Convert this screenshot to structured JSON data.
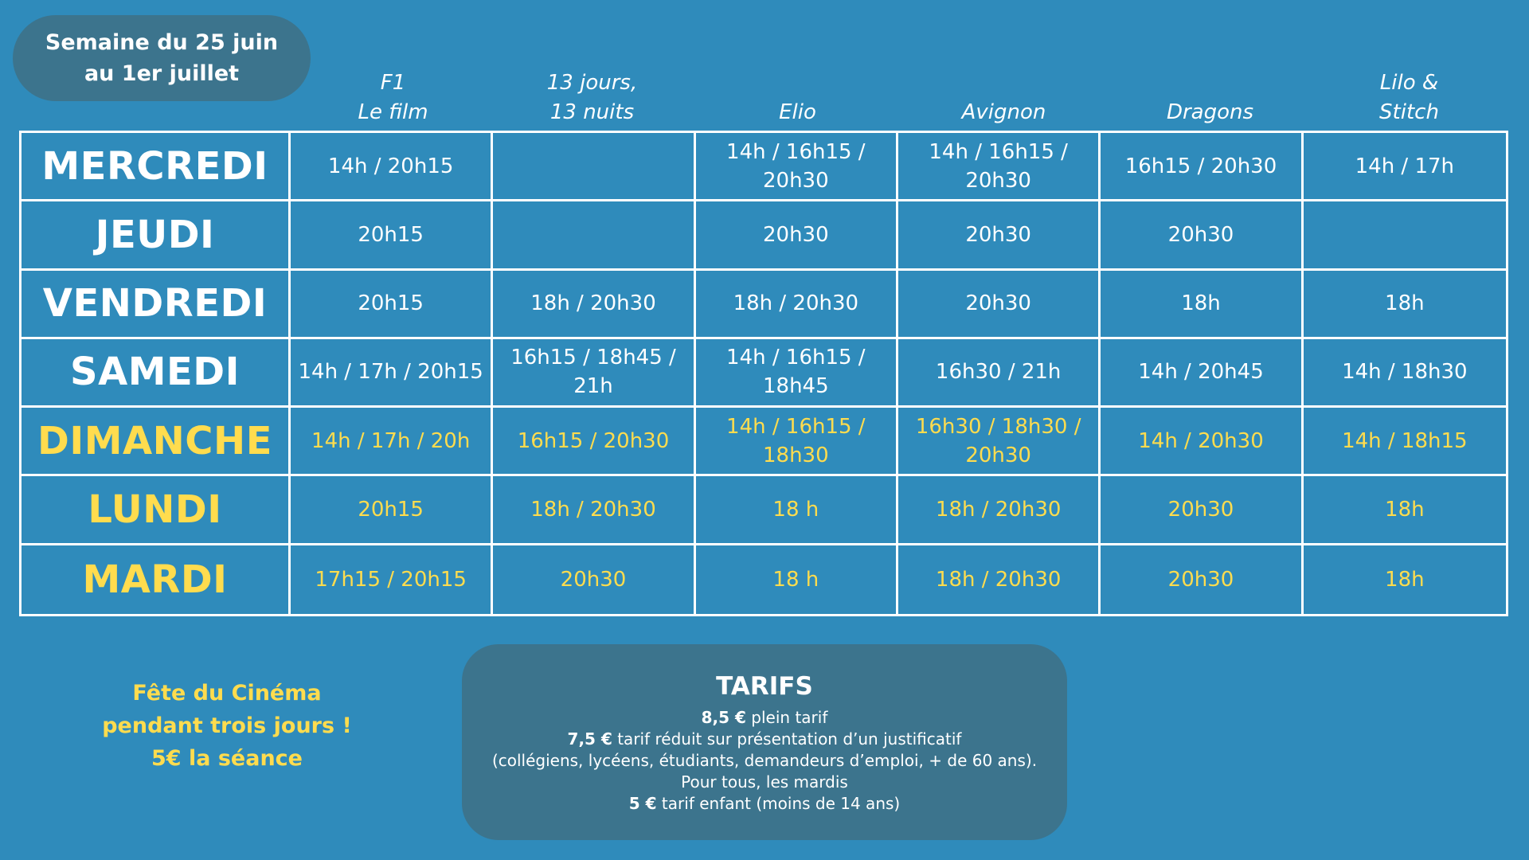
{
  "week": {
    "line1": "Semaine du 25 juin",
    "line2": "au 1er juillet"
  },
  "films": [
    {
      "line1": "F1",
      "line2": "Le film"
    },
    {
      "line1": "13 jours,",
      "line2": "13 nuits"
    },
    {
      "line1": "",
      "line2": "Elio"
    },
    {
      "line1": "",
      "line2": "Avignon"
    },
    {
      "line1": "",
      "line2": "Dragons"
    },
    {
      "line1": "Lilo &",
      "line2": "Stitch"
    }
  ],
  "days": [
    {
      "name": "MERCREDI",
      "highlight": false,
      "times": [
        "14h / 20h15",
        "",
        "14h / 16h15 / 20h30",
        "14h / 16h15 / 20h30",
        "16h15 / 20h30",
        "14h / 17h"
      ]
    },
    {
      "name": "JEUDI",
      "highlight": false,
      "times": [
        "20h15",
        "",
        "20h30",
        "20h30",
        "20h30",
        ""
      ]
    },
    {
      "name": "VENDREDI",
      "highlight": false,
      "times": [
        "20h15",
        "18h / 20h30",
        "18h / 20h30",
        "20h30",
        "18h",
        "18h"
      ]
    },
    {
      "name": "SAMEDI",
      "highlight": false,
      "times": [
        "14h / 17h / 20h15",
        "16h15 / 18h45 / 21h",
        "14h / 16h15 / 18h45",
        "16h30 / 21h",
        "14h / 20h45",
        "14h / 18h30"
      ]
    },
    {
      "name": "DIMANCHE",
      "highlight": true,
      "times": [
        "14h / 17h / 20h",
        "16h15 / 20h30",
        "14h / 16h15 / 18h30",
        "16h30 / 18h30 / 20h30",
        "14h / 20h30",
        "14h / 18h15"
      ]
    },
    {
      "name": "LUNDI",
      "highlight": true,
      "times": [
        "20h15",
        "18h / 20h30",
        "18 h",
        "18h / 20h30",
        "20h30",
        "18h"
      ]
    },
    {
      "name": "MARDI",
      "highlight": true,
      "times": [
        "17h15 / 20h15",
        "20h30",
        "18 h",
        "18h / 20h30",
        "20h30",
        "18h"
      ]
    }
  ],
  "fete": {
    "line1": "Fête du Cinéma",
    "line2": "pendant trois jours !",
    "line3": "5€ la séance"
  },
  "tarifs": {
    "title": "TARIFS",
    "plein_price": "8,5 €",
    "plein_text": " plein tarif",
    "reduit_price": "7,5 €",
    "reduit_text": " tarif réduit sur présentation d’un justificatif",
    "reduit_detail": "(collégiens, lycéens, étudiants, demandeurs d’emploi, + de 60 ans). Pour tous, les mardis",
    "enfant_price": "5 €",
    "enfant_text": " tarif enfant (moins de 14 ans)"
  },
  "colors": {
    "background": "#2f8bbb",
    "panel": "#3c748d",
    "highlight": "#ffdc4e",
    "text": "#ffffff"
  }
}
